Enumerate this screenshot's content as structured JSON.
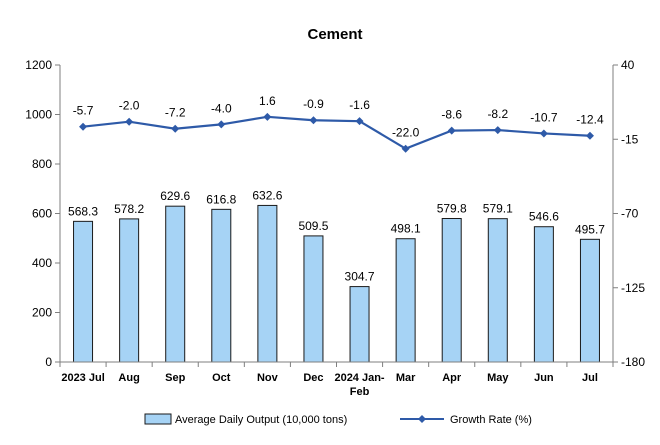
{
  "chart_data": {
    "type": "bar",
    "title": "Cement",
    "categories": [
      "2023 Jul",
      "Aug",
      "Sep",
      "Oct",
      "Nov",
      "Dec",
      "2024 Jan-Feb",
      "Mar",
      "Apr",
      "May",
      "Jun",
      "Jul"
    ],
    "category_lines": [
      [
        "2023 Jul"
      ],
      [
        "Aug"
      ],
      [
        "Sep"
      ],
      [
        "Oct"
      ],
      [
        "Nov"
      ],
      [
        "Dec"
      ],
      [
        "2024 Jan-",
        "Feb"
      ],
      [
        "Mar"
      ],
      [
        "Apr"
      ],
      [
        "May"
      ],
      [
        "Jun"
      ],
      [
        "Jul"
      ]
    ],
    "series": [
      {
        "name": "Average Daily Output (10,000 tons)",
        "type": "bar",
        "axis": "left",
        "values": [
          568.3,
          578.2,
          629.6,
          616.8,
          632.6,
          509.5,
          304.7,
          498.1,
          579.8,
          579.1,
          546.6,
          495.7
        ],
        "labels": [
          "568.3",
          "578.2",
          "629.6",
          "616.8",
          "632.6",
          "509.5",
          "304.7",
          "498.1",
          "579.8",
          "579.1",
          "546.6",
          "495.7"
        ],
        "fill": "#a6d3f5",
        "stroke": "#1a1a1a"
      },
      {
        "name": "Growth Rate (%)",
        "type": "line",
        "axis": "right",
        "values": [
          -5.7,
          -2.0,
          -7.2,
          -4.0,
          1.6,
          -0.9,
          -1.6,
          -22.0,
          -8.6,
          -8.2,
          -10.7,
          -12.4
        ],
        "labels": [
          "-5.7",
          "-2.0",
          "-7.2",
          "-4.0",
          "1.6",
          "-0.9",
          "-1.6",
          "-22.0",
          "-8.6",
          "-8.2",
          "-10.7",
          "-12.4"
        ],
        "color": "#2e5aa8"
      }
    ],
    "left_axis": {
      "ylim": [
        0,
        1200
      ],
      "ticks": [
        "0",
        "200",
        "400",
        "600",
        "800",
        "1000",
        "1200"
      ]
    },
    "right_axis": {
      "ylim": [
        -180,
        40
      ],
      "ticks": [
        "-180",
        "-125",
        "-70",
        "-15",
        "40"
      ]
    },
    "grid": false,
    "legend_position": "bottom"
  }
}
